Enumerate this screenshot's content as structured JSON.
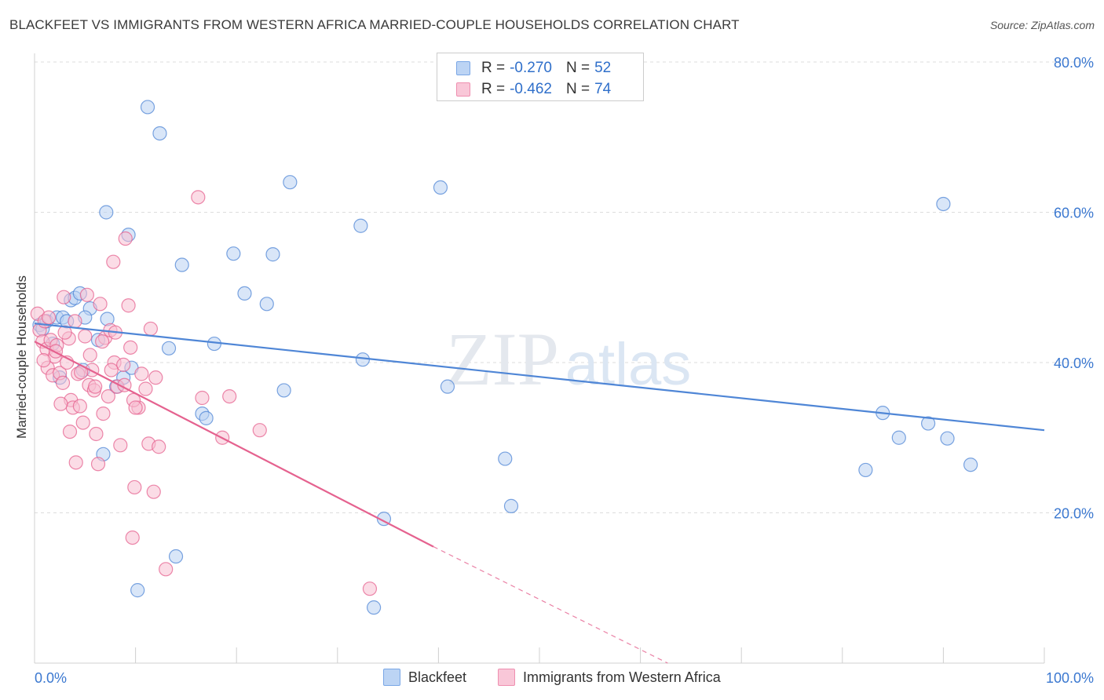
{
  "header": {
    "title": "BLACKFEET VS IMMIGRANTS FROM WESTERN AFRICA MARRIED-COUPLE HOUSEHOLDS CORRELATION CHART",
    "source": "Source: ZipAtlas.com"
  },
  "watermark": {
    "zip": "ZIP",
    "atlas": "atlas"
  },
  "stats": [
    {
      "r_label": "R =",
      "r_value": "-0.270",
      "n_label": "N =",
      "n_value": "52",
      "color": "#7aa7e6",
      "fill": "#bcd4f4"
    },
    {
      "r_label": "R =",
      "r_value": "-0.462",
      "n_label": "N =",
      "n_value": "74",
      "color": "#ef8fb0",
      "fill": "#f9c7d8"
    }
  ],
  "chart_data": {
    "type": "scatter",
    "title": "BLACKFEET VS IMMIGRANTS FROM WESTERN AFRICA MARRIED-COUPLE HOUSEHOLDS CORRELATION CHART",
    "ylabel": "Married-couple Households",
    "xlabel": "",
    "xlim": [
      0,
      100
    ],
    "ylim": [
      0,
      80
    ],
    "x_tick_labels": [
      "0.0%",
      "100.0%"
    ],
    "y_ticks": [
      20,
      40,
      60,
      80
    ],
    "y_tick_labels": [
      "20.0%",
      "40.0%",
      "60.0%",
      "80.0%"
    ],
    "grid": "horizontal dashed",
    "legend_position": "bottom-center",
    "series": [
      {
        "name": "Blackfeet",
        "color": "#4f86d6",
        "fill": "#b9d1f2",
        "trend": {
          "x": [
            0,
            100
          ],
          "y": [
            45.2,
            31.0
          ],
          "style": "solid"
        },
        "points": [
          [
            0.5,
            45.0
          ],
          [
            0.8,
            44.5
          ],
          [
            1.2,
            45.5
          ],
          [
            1.8,
            42.5
          ],
          [
            2.2,
            46.0
          ],
          [
            2.8,
            46.0
          ],
          [
            3.2,
            45.5
          ],
          [
            3.6,
            48.3
          ],
          [
            4.0,
            48.6
          ],
          [
            4.5,
            49.2
          ],
          [
            4.8,
            39.0
          ],
          [
            5.5,
            47.2
          ],
          [
            6.3,
            43.0
          ],
          [
            6.8,
            27.8
          ],
          [
            7.1,
            60.0
          ],
          [
            8.1,
            36.8
          ],
          [
            8.8,
            38.0
          ],
          [
            9.3,
            57.0
          ],
          [
            10.2,
            9.7
          ],
          [
            11.2,
            74.0
          ],
          [
            12.4,
            70.5
          ],
          [
            13.3,
            41.9
          ],
          [
            14.0,
            14.2
          ],
          [
            14.6,
            53.0
          ],
          [
            16.6,
            33.2
          ],
          [
            17.0,
            32.6
          ],
          [
            17.8,
            42.5
          ],
          [
            19.7,
            54.5
          ],
          [
            20.8,
            49.2
          ],
          [
            23.0,
            47.8
          ],
          [
            23.6,
            54.4
          ],
          [
            24.7,
            36.3
          ],
          [
            25.3,
            64.0
          ],
          [
            32.3,
            58.2
          ],
          [
            32.5,
            40.4
          ],
          [
            33.6,
            7.4
          ],
          [
            34.6,
            19.2
          ],
          [
            40.2,
            63.3
          ],
          [
            40.9,
            36.8
          ],
          [
            46.6,
            27.2
          ],
          [
            47.2,
            20.9
          ],
          [
            82.3,
            25.7
          ],
          [
            84.0,
            33.3
          ],
          [
            85.6,
            30.0
          ],
          [
            88.5,
            31.9
          ],
          [
            90.0,
            61.1
          ],
          [
            90.4,
            29.9
          ],
          [
            92.7,
            26.4
          ],
          [
            2.5,
            38.0
          ],
          [
            7.2,
            45.8
          ],
          [
            5.0,
            46.0
          ],
          [
            9.6,
            39.3
          ]
        ]
      },
      {
        "name": "Immigrants from Western Africa",
        "color": "#e5628f",
        "fill": "#f7bfd2",
        "trend": {
          "x": [
            0,
            39.5
          ],
          "y": [
            42.8,
            15.5
          ],
          "style": "solid"
        },
        "trend_extension": {
          "x": [
            39.5,
            62.7
          ],
          "y": [
            15.5,
            0
          ],
          "style": "dashed"
        },
        "points": [
          [
            0.3,
            46.5
          ],
          [
            0.5,
            44.3
          ],
          [
            0.8,
            42.8
          ],
          [
            1.0,
            45.5
          ],
          [
            1.2,
            41.8
          ],
          [
            1.3,
            39.3
          ],
          [
            1.6,
            43.0
          ],
          [
            1.8,
            38.3
          ],
          [
            2.0,
            40.8
          ],
          [
            2.2,
            42.3
          ],
          [
            2.5,
            38.6
          ],
          [
            2.8,
            37.3
          ],
          [
            2.9,
            48.7
          ],
          [
            3.2,
            40.0
          ],
          [
            3.4,
            43.2
          ],
          [
            3.6,
            35.0
          ],
          [
            3.8,
            34.0
          ],
          [
            4.0,
            45.5
          ],
          [
            4.1,
            26.7
          ],
          [
            4.3,
            38.5
          ],
          [
            4.5,
            34.2
          ],
          [
            4.8,
            32.0
          ],
          [
            5.0,
            43.5
          ],
          [
            5.2,
            49.0
          ],
          [
            5.4,
            37.0
          ],
          [
            5.7,
            39.0
          ],
          [
            5.9,
            36.3
          ],
          [
            6.1,
            30.5
          ],
          [
            6.3,
            26.5
          ],
          [
            6.5,
            47.8
          ],
          [
            6.8,
            33.2
          ],
          [
            7.0,
            43.3
          ],
          [
            7.3,
            35.5
          ],
          [
            7.5,
            44.3
          ],
          [
            7.8,
            53.4
          ],
          [
            7.9,
            40.0
          ],
          [
            8.2,
            36.8
          ],
          [
            8.5,
            29.0
          ],
          [
            8.8,
            39.7
          ],
          [
            9.0,
            56.5
          ],
          [
            9.3,
            47.6
          ],
          [
            9.5,
            42.0
          ],
          [
            9.7,
            16.7
          ],
          [
            9.9,
            23.4
          ],
          [
            10.3,
            34.0
          ],
          [
            11.0,
            36.5
          ],
          [
            11.3,
            29.2
          ],
          [
            11.8,
            22.8
          ],
          [
            12.0,
            38.0
          ],
          [
            12.3,
            28.8
          ],
          [
            13.0,
            12.5
          ],
          [
            16.2,
            62.0
          ],
          [
            16.6,
            35.3
          ],
          [
            18.6,
            30.0
          ],
          [
            19.3,
            35.5
          ],
          [
            22.3,
            31.0
          ],
          [
            33.2,
            9.9
          ],
          [
            0.9,
            40.3
          ],
          [
            2.6,
            34.5
          ],
          [
            3.0,
            44.0
          ],
          [
            4.6,
            38.7
          ],
          [
            5.5,
            41.0
          ],
          [
            6.0,
            36.8
          ],
          [
            7.6,
            39.0
          ],
          [
            8.0,
            44.0
          ],
          [
            8.9,
            37.0
          ],
          [
            9.8,
            35.0
          ],
          [
            10.6,
            38.5
          ],
          [
            1.4,
            46.0
          ],
          [
            2.1,
            41.5
          ],
          [
            3.5,
            30.8
          ],
          [
            6.7,
            42.8
          ],
          [
            10.0,
            34.0
          ],
          [
            11.5,
            44.5
          ]
        ]
      }
    ]
  }
}
